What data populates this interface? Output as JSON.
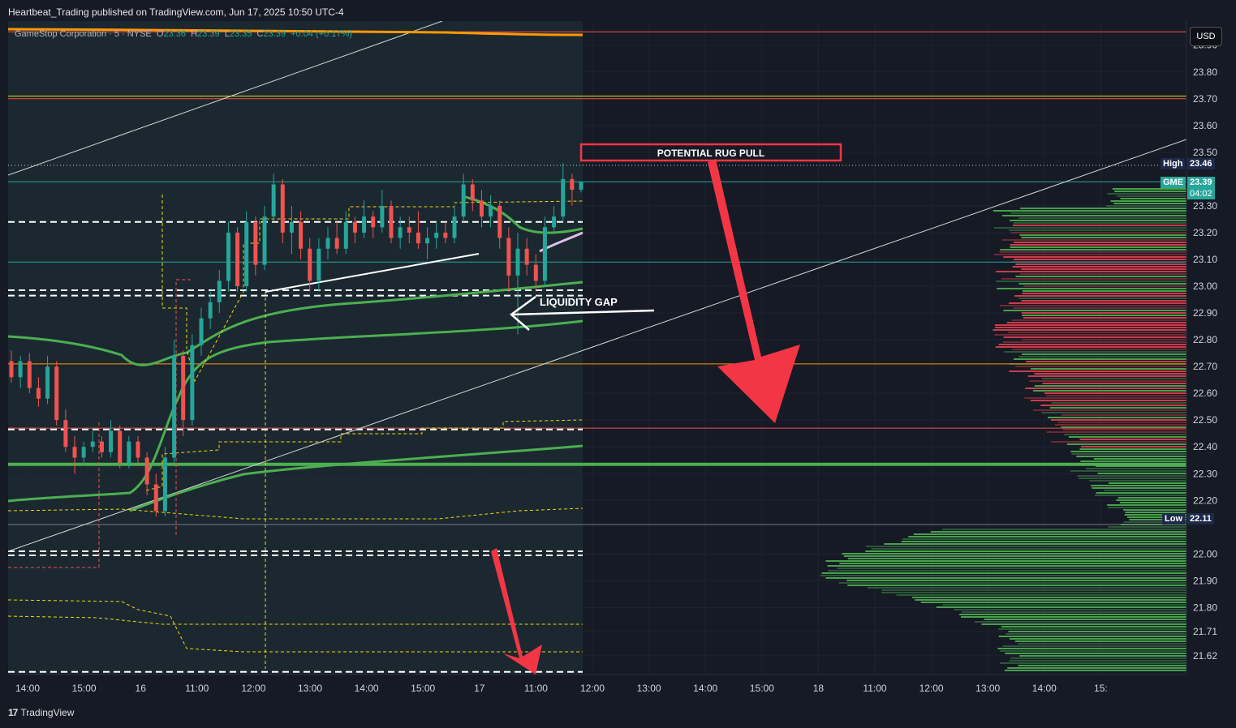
{
  "header": {
    "published_by": "Heartbeat_Trading published on TradingView.com, Jun 17, 2025 10:50 UTC-4"
  },
  "legend": {
    "symbol": "GameStop Corporation · 5 · NYSE",
    "open_label": "O",
    "open": "23.36",
    "high_label": "H",
    "high": "23.39",
    "low_label": "L",
    "low": "23.35",
    "close_label": "C",
    "close": "23.39",
    "change": "+0.04 (+0.17%)"
  },
  "currency_button": "USD",
  "price_tags": {
    "high_label": "High",
    "high_value": "23.46",
    "symbol_label": "GME",
    "last_value": "23.39",
    "countdown": "04:02",
    "low_label": "Low",
    "low_value": "22.11"
  },
  "colors": {
    "background": "#161a25",
    "up": "#26a69a",
    "down": "#ef5350",
    "ma_green": "#4caf50",
    "annotation_red": "#f23645",
    "level_yellow": "#f5d60a",
    "level_orange": "#ff9800"
  },
  "annotations": {
    "rug_pull": "POTENTIAL RUG PULL",
    "liquidity_gap": "LIQUIDITY GAP"
  },
  "footer": {
    "brand": "TradingView",
    "logo_glyph": "17"
  },
  "chart_data": {
    "type": "candlestick",
    "symbol": "GME",
    "interval": "5",
    "y_ticks": [
      "23.90",
      "23.80",
      "23.70",
      "23.60",
      "23.50",
      "23.30",
      "23.20",
      "23.10",
      "23.00",
      "22.90",
      "22.80",
      "22.70",
      "22.60",
      "22.50",
      "22.40",
      "22.30",
      "22.20",
      "22.00",
      "21.90",
      "21.80",
      "21.71",
      "21.62"
    ],
    "x_ticks": [
      "14:00",
      "15:00",
      "16",
      "11:00",
      "12:00",
      "13:00",
      "14:00",
      "15:00",
      "17",
      "11:00",
      "12:00",
      "13:00",
      "14:00",
      "15:00",
      "18",
      "11:00",
      "12:00",
      "13:00",
      "14:00",
      "15:"
    ],
    "ylim": [
      21.55,
      23.99
    ],
    "high_of_range": 23.46,
    "low_of_range": 22.11,
    "last_price": 23.39,
    "horizontal_levels": [
      {
        "price": 23.95,
        "color": "#ef5350",
        "style": "solid"
      },
      {
        "price": 23.71,
        "color": "#f5d60a",
        "style": "solid"
      },
      {
        "price": 23.7,
        "color": "#ef5350",
        "style": "solid"
      },
      {
        "price": 23.39,
        "color": "#26a69a",
        "style": "solid"
      },
      {
        "price": 23.09,
        "color": "#26a69a",
        "style": "solid"
      },
      {
        "price": 22.71,
        "color": "#ff9800",
        "style": "solid"
      },
      {
        "price": 22.47,
        "color": "#ef5350",
        "style": "solid"
      },
      {
        "price": 22.335,
        "color": "#4caf50",
        "style": "thick"
      },
      {
        "price": 22.11,
        "color": "#787b86",
        "style": "solid"
      },
      {
        "price": 23.24,
        "color": "#ffffff",
        "style": "dashed"
      },
      {
        "price": 22.985,
        "color": "#ffffff",
        "style": "dashed"
      },
      {
        "price": 22.965,
        "color": "#ffffff",
        "style": "dashed"
      },
      {
        "price": 22.465,
        "color": "#ffffff",
        "style": "dashed"
      },
      {
        "price": 22.01,
        "color": "#ffffff",
        "style": "dashed"
      },
      {
        "price": 21.995,
        "color": "#ffffff",
        "style": "dashed"
      },
      {
        "price": 21.56,
        "color": "#ffffff",
        "style": "dashed"
      }
    ],
    "candles": [
      [
        22.72,
        22.76,
        22.64,
        22.66
      ],
      [
        22.66,
        22.74,
        22.62,
        22.72
      ],
      [
        22.72,
        22.75,
        22.6,
        22.62
      ],
      [
        22.62,
        22.66,
        22.55,
        22.58
      ],
      [
        22.58,
        22.74,
        22.56,
        22.7
      ],
      [
        22.7,
        22.72,
        22.48,
        22.5
      ],
      [
        22.5,
        22.54,
        22.38,
        22.4
      ],
      [
        22.4,
        22.44,
        22.3,
        22.36
      ],
      [
        22.36,
        22.42,
        22.33,
        22.4
      ],
      [
        22.4,
        22.46,
        22.38,
        22.42
      ],
      [
        22.42,
        22.44,
        22.36,
        22.38
      ],
      [
        22.38,
        22.5,
        22.36,
        22.46
      ],
      [
        22.46,
        22.48,
        22.32,
        22.34
      ],
      [
        22.34,
        22.44,
        22.32,
        22.42
      ],
      [
        22.42,
        22.44,
        22.34,
        22.36
      ],
      [
        22.36,
        22.38,
        22.22,
        22.26
      ],
      [
        22.26,
        22.3,
        22.14,
        22.16
      ],
      [
        22.16,
        22.4,
        22.14,
        22.36
      ],
      [
        22.36,
        22.8,
        22.34,
        22.74
      ],
      [
        22.74,
        22.76,
        22.44,
        22.5
      ],
      [
        22.5,
        22.82,
        22.48,
        22.78
      ],
      [
        22.78,
        22.92,
        22.74,
        22.88
      ],
      [
        22.88,
        22.98,
        22.84,
        22.94
      ],
      [
        22.94,
        23.06,
        22.9,
        23.02
      ],
      [
        23.02,
        23.24,
        22.98,
        23.2
      ],
      [
        23.2,
        23.22,
        22.98,
        23.0
      ],
      [
        23.0,
        23.28,
        22.98,
        23.24
      ],
      [
        23.24,
        23.26,
        23.04,
        23.08
      ],
      [
        23.08,
        23.3,
        23.06,
        23.26
      ],
      [
        23.26,
        23.42,
        23.24,
        23.38
      ],
      [
        23.38,
        23.4,
        23.16,
        23.2
      ],
      [
        23.2,
        23.3,
        23.12,
        23.24
      ],
      [
        23.24,
        23.28,
        23.1,
        23.14
      ],
      [
        23.14,
        23.18,
        22.98,
        23.02
      ],
      [
        23.02,
        23.18,
        22.98,
        23.14
      ],
      [
        23.14,
        23.22,
        23.1,
        23.18
      ],
      [
        23.18,
        23.24,
        23.12,
        23.14
      ],
      [
        23.14,
        23.28,
        23.12,
        23.24
      ],
      [
        23.24,
        23.26,
        23.16,
        23.2
      ],
      [
        23.2,
        23.32,
        23.18,
        23.26
      ],
      [
        23.26,
        23.28,
        23.18,
        23.22
      ],
      [
        23.22,
        23.36,
        23.2,
        23.3
      ],
      [
        23.3,
        23.32,
        23.16,
        23.18
      ],
      [
        23.18,
        23.26,
        23.14,
        23.22
      ],
      [
        23.22,
        23.26,
        23.16,
        23.2
      ],
      [
        23.2,
        23.28,
        23.14,
        23.16
      ],
      [
        23.16,
        23.22,
        23.1,
        23.18
      ],
      [
        23.18,
        23.24,
        23.14,
        23.2
      ],
      [
        23.2,
        23.24,
        23.16,
        23.18
      ],
      [
        23.18,
        23.3,
        23.16,
        23.26
      ],
      [
        23.26,
        23.42,
        23.24,
        23.38
      ],
      [
        23.38,
        23.4,
        23.28,
        23.32
      ],
      [
        23.32,
        23.36,
        23.22,
        23.26
      ],
      [
        23.26,
        23.34,
        23.22,
        23.3
      ],
      [
        23.3,
        23.32,
        23.14,
        23.18
      ],
      [
        23.18,
        23.22,
        22.98,
        23.04
      ],
      [
        23.04,
        23.2,
        22.82,
        23.14
      ],
      [
        23.14,
        23.18,
        23.04,
        23.08
      ],
      [
        23.08,
        23.12,
        22.98,
        23.02
      ],
      [
        23.02,
        23.26,
        23.0,
        23.22
      ],
      [
        23.22,
        23.3,
        23.2,
        23.26
      ],
      [
        23.26,
        23.46,
        23.24,
        23.4
      ],
      [
        23.4,
        23.42,
        23.3,
        23.36
      ],
      [
        23.36,
        23.39,
        23.35,
        23.39
      ]
    ]
  }
}
